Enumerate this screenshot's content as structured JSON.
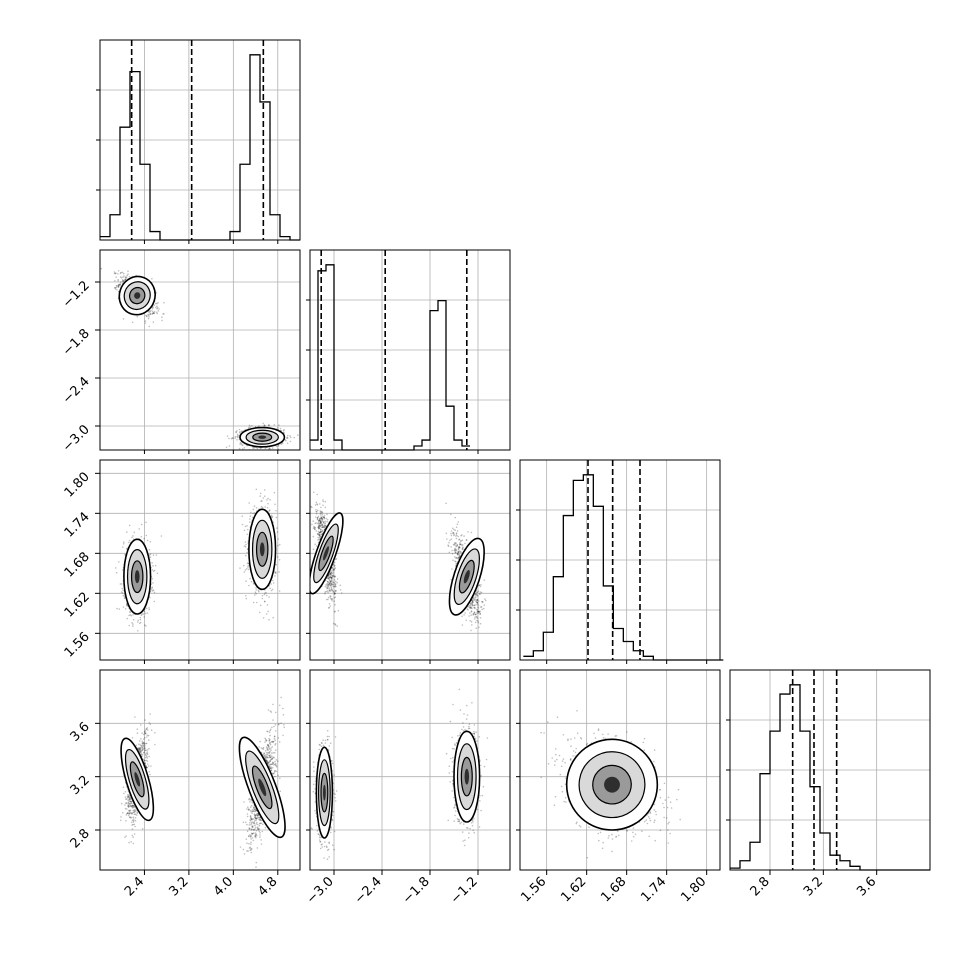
{
  "chart_data": {
    "type": "corner",
    "title": "",
    "n_params": 4,
    "parameters": [
      {
        "label": "",
        "range": [
          1.6,
          5.2
        ],
        "ticks": [
          "2.4",
          "3.2",
          "4.0",
          "4.8"
        ],
        "tick_values": [
          2.4,
          3.2,
          4.0,
          4.8
        ]
      },
      {
        "label": "",
        "range": [
          -3.3,
          -0.8
        ],
        "ticks": [
          "−3.0",
          "−2.4",
          "−1.8",
          "−1.2"
        ],
        "tick_values": [
          -3.0,
          -2.4,
          -1.8,
          -1.2
        ]
      },
      {
        "label": "",
        "range": [
          1.52,
          1.82
        ],
        "ticks": [
          "1.56",
          "1.62",
          "1.68",
          "1.74",
          "1.80"
        ],
        "tick_values": [
          1.56,
          1.62,
          1.68,
          1.74,
          1.8
        ]
      },
      {
        "label": "",
        "range": [
          2.5,
          4.0
        ],
        "ticks": [
          "2.8",
          "3.2",
          "3.6"
        ],
        "tick_values": [
          2.8,
          3.2,
          3.6
        ]
      }
    ],
    "quantiles": [
      [
        2.17,
        3.25,
        4.54
      ],
      [
        -3.16,
        -2.36,
        -1.34
      ],
      [
        1.622,
        1.659,
        1.7
      ],
      [
        2.97,
        3.13,
        3.3
      ]
    ],
    "histograms": [
      {
        "bin_start": 1.6,
        "bin_width": 0.18,
        "counts": [
          0.02,
          0.15,
          0.67,
          1.0,
          0.45,
          0.05,
          0,
          0,
          0,
          0,
          0,
          0,
          0,
          0.05,
          0.45,
          1.1,
          0.82,
          0.15,
          0.02,
          0
        ]
      },
      {
        "bin_start": -3.3,
        "bin_width": 0.1,
        "counts": [
          0.05,
          0.9,
          0.93,
          0.05,
          0,
          0,
          0,
          0,
          0,
          0,
          0,
          0,
          0,
          0.02,
          0.05,
          0.7,
          0.75,
          0.22,
          0.05,
          0.02
        ]
      },
      {
        "bin_start": 1.525,
        "bin_width": 0.015,
        "counts": [
          0.02,
          0.05,
          0.15,
          0.45,
          0.78,
          0.97,
          1.0,
          0.83,
          0.4,
          0.17,
          0.1,
          0.05,
          0.02,
          0.0,
          0.0,
          0.0,
          0.0,
          0.0,
          0.0,
          0.0
        ]
      },
      {
        "bin_start": 2.5,
        "bin_width": 0.075,
        "counts": [
          0.01,
          0.05,
          0.15,
          0.52,
          0.75,
          0.95,
          1.0,
          0.75,
          0.45,
          0.2,
          0.08,
          0.05,
          0.02,
          0.0,
          0.0,
          0.0,
          0.0,
          0.0,
          0.0,
          0.0
        ]
      }
    ],
    "blobs": {
      "1_0": [
        {
          "x": 2.27,
          "y": -1.37,
          "sx": 0.16,
          "sy": 0.12,
          "rho": -0.6
        },
        {
          "x": 4.52,
          "y": -3.14,
          "sx": 0.2,
          "sy": 0.06,
          "rho": 0.0
        }
      ],
      "2_0": [
        {
          "x": 2.27,
          "y": 1.645,
          "sx": 0.12,
          "sy": 0.028,
          "rho": 0.0
        },
        {
          "x": 4.52,
          "y": 1.686,
          "sx": 0.12,
          "sy": 0.03,
          "rho": 0.0
        }
      ],
      "2_1": [
        {
          "x": -3.1,
          "y": 1.68,
          "sx": 0.06,
          "sy": 0.032,
          "rho": -0.65
        },
        {
          "x": -1.34,
          "y": 1.645,
          "sx": 0.08,
          "sy": 0.03,
          "rho": -0.6
        }
      ],
      "3_0": [
        {
          "x": 2.27,
          "y": 3.18,
          "sx": 0.1,
          "sy": 0.16,
          "rho": 0.55
        },
        {
          "x": 4.52,
          "y": 3.12,
          "sx": 0.12,
          "sy": 0.2,
          "rho": 0.7
        }
      ],
      "3_1": [
        {
          "x": -3.12,
          "y": 3.08,
          "sx": 0.05,
          "sy": 0.17,
          "rho": 0.0
        },
        {
          "x": -1.34,
          "y": 3.2,
          "sx": 0.08,
          "sy": 0.17,
          "rho": 0.0
        }
      ],
      "3_2": [
        {
          "x": 1.658,
          "y": 3.14,
          "sx": 0.034,
          "sy": 0.17,
          "rho": -0.3
        }
      ]
    }
  }
}
